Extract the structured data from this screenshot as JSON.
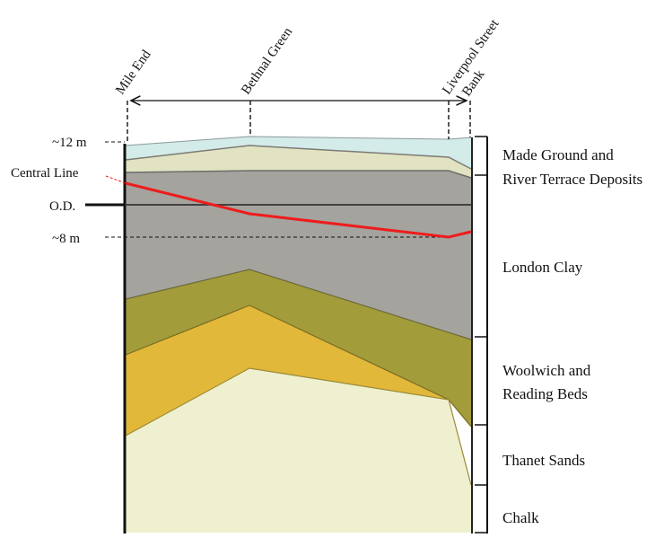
{
  "stations": {
    "mile_end": "Mile End",
    "bethnal_green": "Bethnal Green",
    "liverpool_street": "Liverpool Street",
    "bank": "Bank"
  },
  "levels": {
    "top": "~12 m",
    "datum": "O.D.",
    "bottom": "~8 m"
  },
  "tunnel": {
    "label": "Central Line",
    "color": "#ee1c1c"
  },
  "strata": [
    {
      "id": "made_ground",
      "label_line1": "Made Ground and",
      "label_line2": "River Terrace Deposits",
      "color": "#e1e3c2"
    },
    {
      "id": "london_clay",
      "label_line1": "London Clay",
      "label_line2": "",
      "color": "#a4a39e"
    },
    {
      "id": "woolwich",
      "label_line1": "Woolwich and",
      "label_line2": "Reading Beds",
      "color": "#a39c3b"
    },
    {
      "id": "thanet",
      "label_line1": "Thanet Sands",
      "label_line2": "",
      "color": "#e2b83a"
    },
    {
      "id": "chalk",
      "label_line1": "Chalk",
      "label_line2": "",
      "color": "#eef0cf"
    }
  ],
  "colors": {
    "made_ground_top": "#d3ebe9",
    "terrace": "#e1e3c2"
  }
}
